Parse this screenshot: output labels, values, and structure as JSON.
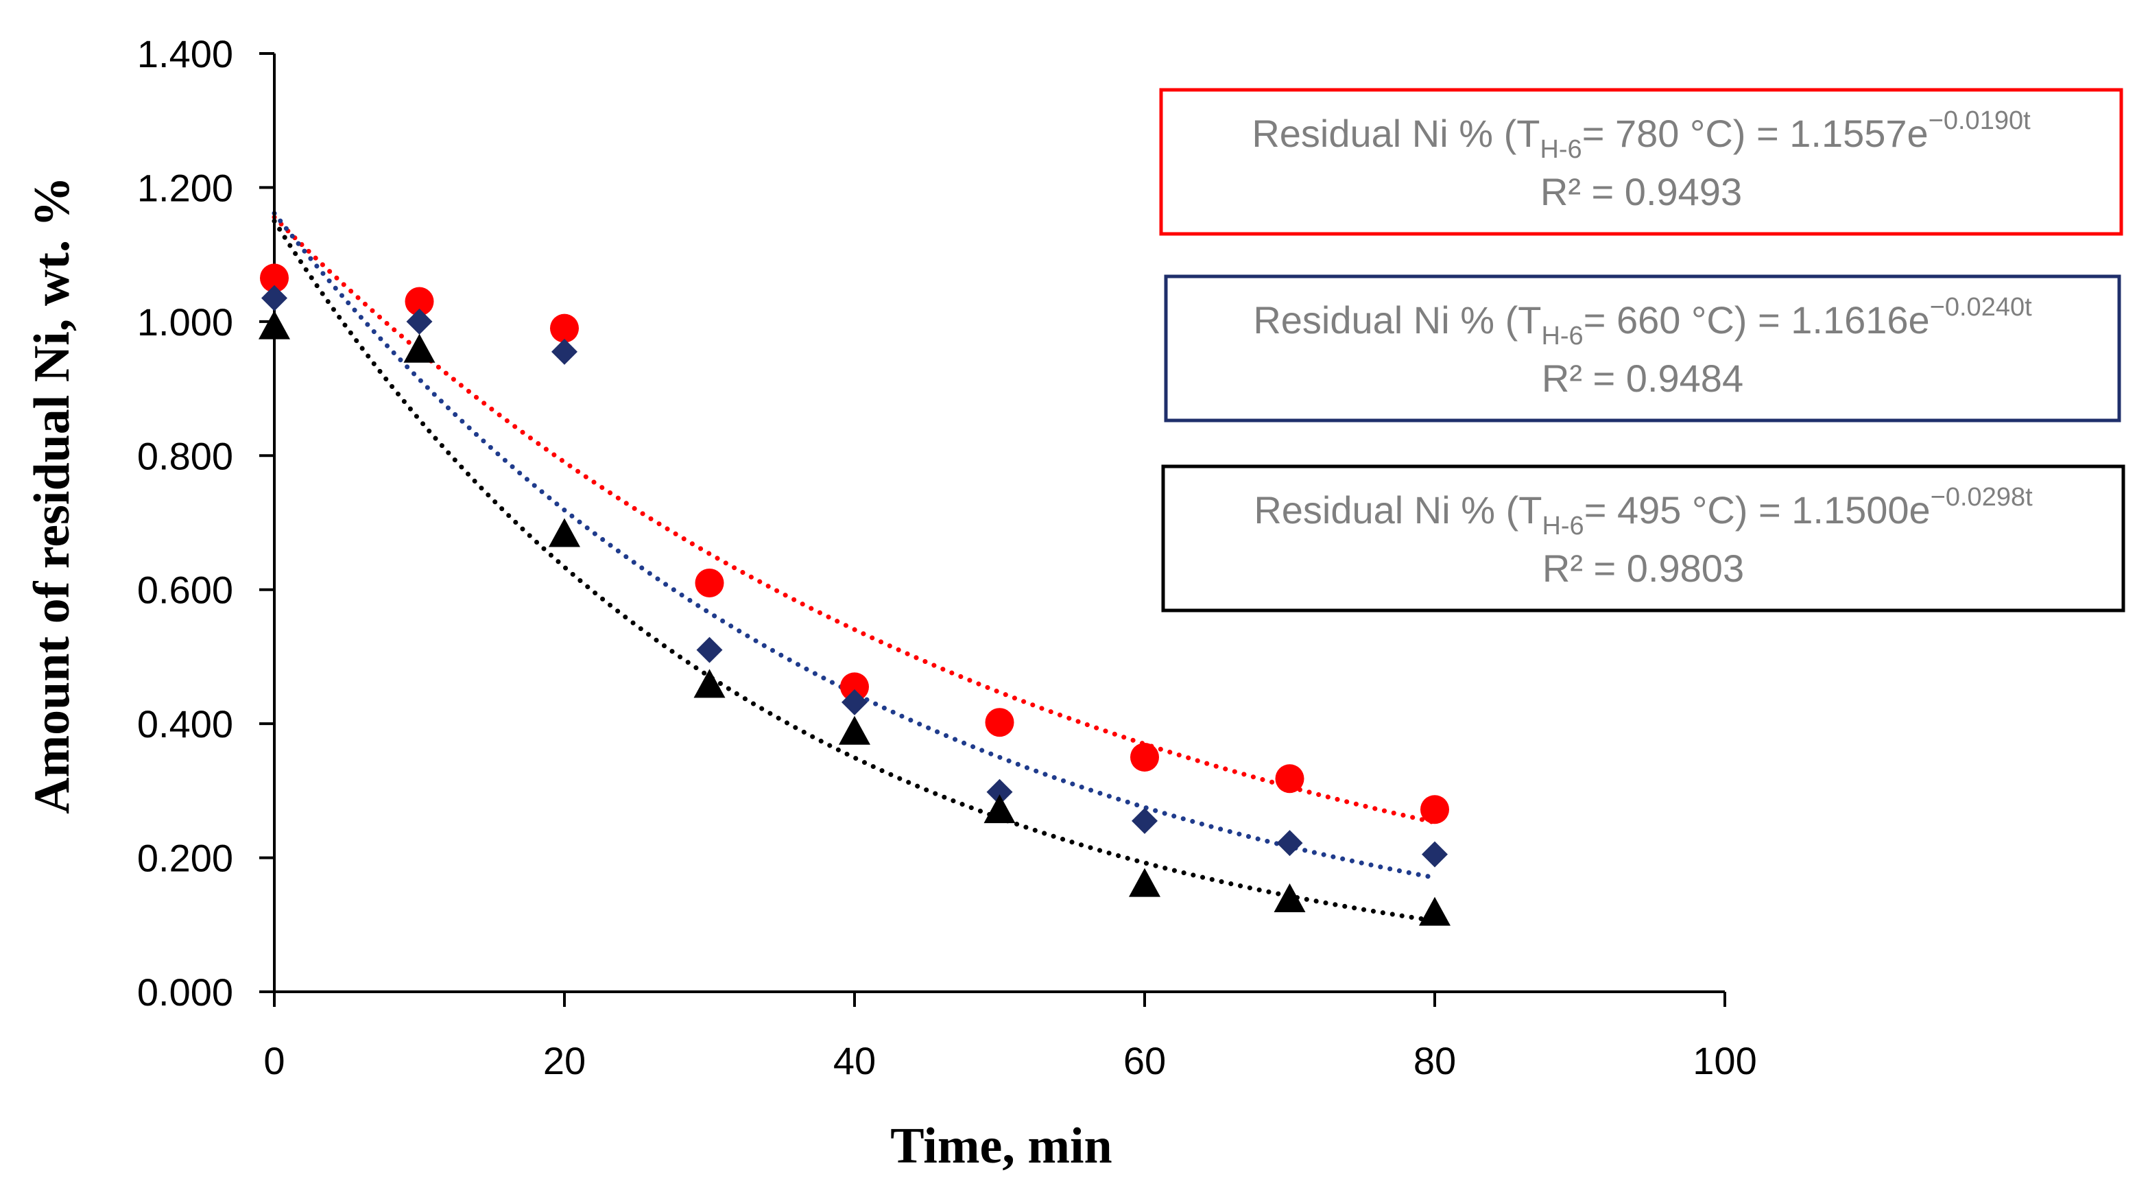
{
  "chart_data": {
    "type": "scatter",
    "title": "",
    "xlabel": "Time, min",
    "ylabel": "Amount of residual Ni, wt. %",
    "xlim": [
      0,
      100
    ],
    "ylim": [
      0,
      1.4
    ],
    "x_ticks": [
      "0",
      "20",
      "40",
      "60",
      "80",
      "100"
    ],
    "y_ticks": [
      "0.000",
      "0.200",
      "0.400",
      "0.600",
      "0.800",
      "1.000",
      "1.200",
      "1.400"
    ],
    "grid": false,
    "x": [
      0,
      10,
      20,
      30,
      40,
      50,
      60,
      70,
      80
    ],
    "series": [
      {
        "name": "T_H-6 = 780 °C",
        "marker": "circle",
        "color": "#ff0000",
        "values": [
          1.065,
          1.03,
          0.99,
          0.61,
          0.455,
          0.402,
          0.35,
          0.318,
          0.272
        ],
        "trend": {
          "a": 1.1557,
          "k": -0.019,
          "r2": "0.9493"
        },
        "equation": {
          "prefix": "Residual Ni % (T",
          "sub": "H-6",
          "middle": "= 780 °C) = 1.1557e",
          "sup": "−0.0190t",
          "r2_text": "R² = 0.9493"
        },
        "box_color": "#ff0000"
      },
      {
        "name": "T_H-6 = 660 °C",
        "marker": "diamond",
        "color": "#1f2f6b",
        "trend_color": "#1f3b8c",
        "values": [
          1.035,
          1.0,
          0.955,
          0.51,
          0.432,
          0.298,
          0.255,
          0.222,
          0.205
        ],
        "trend": {
          "a": 1.1616,
          "k": -0.024,
          "r2": "0.9484"
        },
        "equation": {
          "prefix": "Residual Ni % (T",
          "sub": "H-6",
          "middle": "= 660 °C) = 1.1616e",
          "sup": "−0.0240t",
          "r2_text": "R² = 0.9484"
        },
        "box_color": "#1f2f6b"
      },
      {
        "name": "T_H-6 = 495 °C",
        "marker": "triangle",
        "color": "#000000",
        "values": [
          0.99,
          0.955,
          0.68,
          0.455,
          0.385,
          0.268,
          0.158,
          0.135,
          0.115
        ],
        "trend": {
          "a": 1.15,
          "k": -0.0298,
          "r2": "0.9803"
        },
        "equation": {
          "prefix": "Residual Ni % (T",
          "sub": "H-6",
          "middle": "= 495 °C)  = 1.1500e",
          "sup": "−0.0298t",
          "r2_text": "R² = 0.9803"
        },
        "box_color": "#000000"
      }
    ]
  }
}
